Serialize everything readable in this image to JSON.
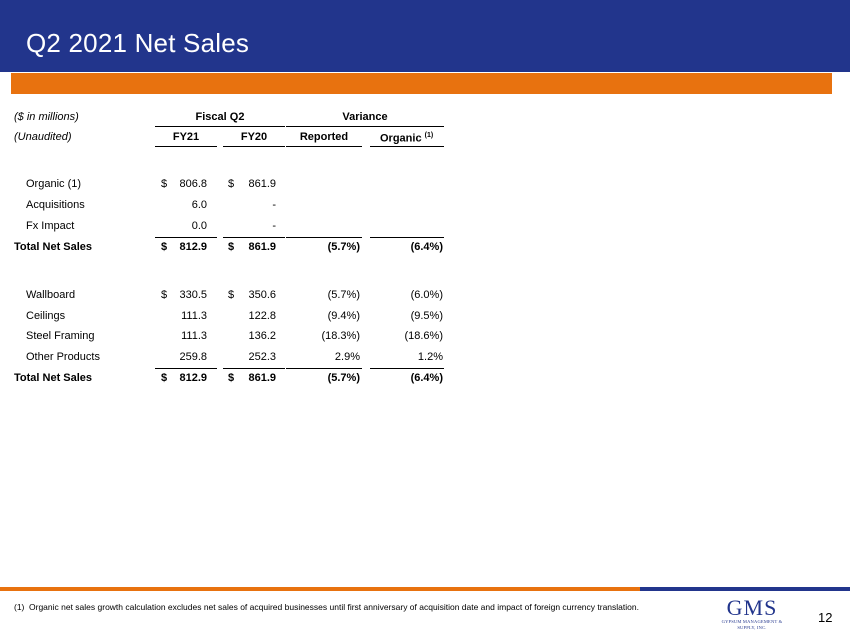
{
  "header": {
    "title": "Q2 2021 Net Sales",
    "accent_color": "#22358c",
    "bar_color": "#e8720f"
  },
  "table": {
    "units_label": "($ in millions)",
    "unaudited_label": "(Unaudited)",
    "group_fiscal": "Fiscal Q2",
    "group_variance": "Variance",
    "col_fy21": "FY21",
    "col_fy20": "FY20",
    "col_reported": "Reported",
    "col_organic": "Organic",
    "col_organic_note": "(1)",
    "currency": "$",
    "section1": [
      {
        "label": "Organic (1)",
        "fy21": "806.8",
        "fy20": "861.9",
        "reported": "",
        "organic": "",
        "dollar": true
      },
      {
        "label": "Acquisitions",
        "fy21": "6.0",
        "fy20": "-",
        "reported": "",
        "organic": "",
        "dollar": false
      },
      {
        "label": "Fx Impact",
        "fy21": "0.0",
        "fy20": "-",
        "reported": "",
        "organic": "",
        "dollar": false
      }
    ],
    "total1": {
      "label": "Total Net Sales",
      "fy21": "812.9",
      "fy20": "861.9",
      "reported": "(5.7%)",
      "organic": "(6.4%)"
    },
    "section2": [
      {
        "label": "Wallboard",
        "fy21": "330.5",
        "fy20": "350.6",
        "reported": "(5.7%)",
        "organic": "(6.0%)",
        "dollar": true
      },
      {
        "label": "Ceilings",
        "fy21": "111.3",
        "fy20": "122.8",
        "reported": "(9.4%)",
        "organic": "(9.5%)",
        "dollar": false
      },
      {
        "label": "Steel Framing",
        "fy21": "111.3",
        "fy20": "136.2",
        "reported": "(18.3%)",
        "organic": "(18.6%)",
        "dollar": false
      },
      {
        "label": "Other Products",
        "fy21": "259.8",
        "fy20": "252.3",
        "reported": "2.9%",
        "organic": "1.2%",
        "dollar": false
      }
    ],
    "total2": {
      "label": "Total Net Sales",
      "fy21": "812.9",
      "fy20": "861.9",
      "reported": "(5.7%)",
      "organic": "(6.4%)"
    }
  },
  "footer": {
    "footnote_marker": "(1)",
    "footnote_text": "Organic net sales growth calculation excludes net sales of acquired businesses until first anniversary of acquisition date and impact of foreign currency translation.",
    "logo_text": "GMS",
    "logo_subtext": "GYPSUM MANAGEMENT & SUPPLY, INC.",
    "page_number": "12"
  }
}
